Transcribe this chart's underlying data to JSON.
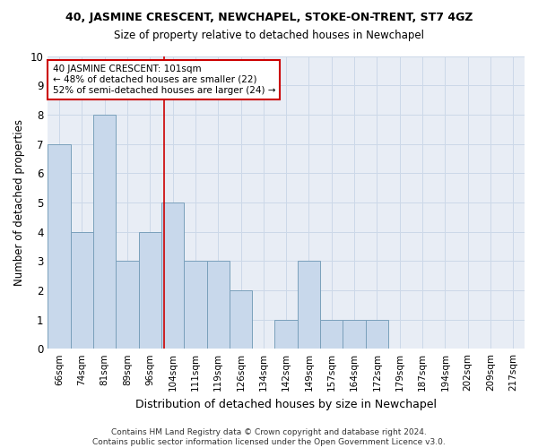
{
  "title_line1": "40, JASMINE CRESCENT, NEWCHAPEL, STOKE-ON-TRENT, ST7 4GZ",
  "title_line2": "Size of property relative to detached houses in Newchapel",
  "xlabel": "Distribution of detached houses by size in Newchapel",
  "ylabel": "Number of detached properties",
  "footer_line1": "Contains HM Land Registry data © Crown copyright and database right 2024.",
  "footer_line2": "Contains public sector information licensed under the Open Government Licence v3.0.",
  "categories": [
    "66sqm",
    "74sqm",
    "81sqm",
    "89sqm",
    "96sqm",
    "104sqm",
    "111sqm",
    "119sqm",
    "126sqm",
    "134sqm",
    "142sqm",
    "149sqm",
    "157sqm",
    "164sqm",
    "172sqm",
    "179sqm",
    "187sqm",
    "194sqm",
    "202sqm",
    "209sqm",
    "217sqm"
  ],
  "values": [
    7,
    4,
    8,
    3,
    4,
    5,
    3,
    3,
    2,
    0,
    1,
    3,
    1,
    1,
    1,
    0,
    0,
    0,
    0,
    0,
    0
  ],
  "bar_color": "#c8d8eb",
  "bar_edge_color": "#7aa0bb",
  "vline_x": 4.62,
  "vline_color": "#cc0000",
  "annotation_text": "40 JASMINE CRESCENT: 101sqm\n← 48% of detached houses are smaller (22)\n52% of semi-detached houses are larger (24) →",
  "annotation_box_color": "#ffffff",
  "annotation_box_edge": "#cc0000",
  "ylim": [
    0,
    10
  ],
  "yticks": [
    0,
    1,
    2,
    3,
    4,
    5,
    6,
    7,
    8,
    9,
    10
  ],
  "grid_color": "#ccd8e8",
  "bg_color": "#e8edf5"
}
